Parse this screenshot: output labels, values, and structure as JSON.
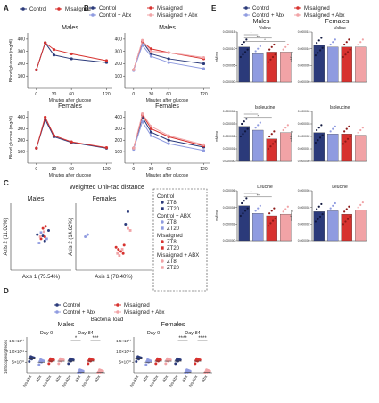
{
  "colors": {
    "control": "#2b3a7a",
    "control_abx": "#8f9be0",
    "misaligned": "#d7322f",
    "misaligned_abx": "#f1a3a6",
    "dashed_box": "#333333"
  },
  "panel_letters": {
    "A": "A",
    "B": "B",
    "C": "C",
    "D": "D",
    "E": "E"
  },
  "legends": {
    "A": [
      "Control",
      "Misaligned"
    ],
    "B": [
      "Control",
      "Misaligned",
      "Control + Abx",
      "Misaligned + Abx"
    ],
    "D": [
      "Control",
      "Misaligned",
      "Control + Abx",
      "Misaligned + Abx"
    ],
    "E": [
      "Control",
      "Misaligned",
      "Control + Abx",
      "Misaligned + Abx"
    ]
  },
  "legend_C": {
    "box_title": "Control",
    "groups": [
      {
        "title": "Control",
        "items": [
          "ZT8",
          "ZT20"
        ]
      },
      {
        "title": "Control + ABX",
        "items": [
          "ZT8",
          "ZT20"
        ]
      },
      {
        "title": "Misaligned",
        "items": [
          "ZT8",
          "ZT20"
        ]
      },
      {
        "title": "Misaligned + ABX",
        "items": [
          "ZT8",
          "ZT20"
        ]
      }
    ]
  },
  "section_titles": {
    "males": "Males",
    "females": "Females",
    "weighted_unifrac": "Weighted UniFrac distance",
    "bacterial_load": "Bacterial load"
  },
  "chart_data": [
    {
      "id": "A-males",
      "type": "line",
      "title": "Males",
      "xlabel": "Minutes after glucose",
      "ylabel": "Blood glucose (mg/dl)",
      "x": [
        0,
        15,
        30,
        60,
        120
      ],
      "xticks": [
        0,
        30,
        60,
        120
      ],
      "yticks": [
        100,
        200,
        300,
        400
      ],
      "ylim": [
        0,
        450
      ],
      "series": [
        {
          "name": "Control",
          "values": [
            150,
            370,
            270,
            240,
            210
          ]
        },
        {
          "name": "Misaligned",
          "values": [
            150,
            370,
            315,
            280,
            225
          ]
        }
      ]
    },
    {
      "id": "A-females",
      "type": "line",
      "title": "Females",
      "xlabel": "Minutes after glucose",
      "ylabel": "Blood glucose (mg/dl)",
      "x": [
        0,
        15,
        30,
        60,
        120
      ],
      "xticks": [
        0,
        30,
        60,
        120
      ],
      "yticks": [
        100,
        200,
        300,
        400
      ],
      "ylim": [
        0,
        450
      ],
      "series": [
        {
          "name": "Control",
          "values": [
            130,
            380,
            230,
            180,
            130
          ]
        },
        {
          "name": "Misaligned",
          "values": [
            130,
            400,
            240,
            185,
            135
          ]
        }
      ]
    },
    {
      "id": "B-males",
      "type": "line",
      "title": "Males",
      "xlabel": "Minutes after glucose",
      "ylabel": "",
      "x": [
        0,
        15,
        30,
        60,
        120
      ],
      "xticks": [
        0,
        30,
        60,
        120
      ],
      "yticks": [
        100,
        200,
        300,
        400
      ],
      "ylim": [
        0,
        450
      ],
      "series": [
        {
          "name": "Control",
          "values": [
            150,
            380,
            280,
            240,
            200
          ]
        },
        {
          "name": "Misaligned",
          "values": [
            150,
            380,
            320,
            290,
            240
          ]
        },
        {
          "name": "Control + Abx",
          "values": [
            145,
            350,
            260,
            210,
            160
          ]
        },
        {
          "name": "Misaligned + Abx",
          "values": [
            150,
            390,
            300,
            290,
            250
          ]
        }
      ]
    },
    {
      "id": "B-females",
      "type": "line",
      "title": "Females",
      "xlabel": "Minutes after glucose",
      "ylabel": "",
      "x": [
        0,
        15,
        30,
        60,
        120
      ],
      "xticks": [
        0,
        30,
        60,
        120
      ],
      "yticks": [
        100,
        200,
        300,
        400
      ],
      "ylim": [
        0,
        450
      ],
      "series": [
        {
          "name": "Control",
          "values": [
            130,
            400,
            270,
            200,
            140
          ]
        },
        {
          "name": "Misaligned",
          "values": [
            130,
            420,
            300,
            230,
            150
          ]
        },
        {
          "name": "Control + Abx",
          "values": [
            120,
            360,
            240,
            170,
            110
          ]
        },
        {
          "name": "Misaligned + Abx",
          "values": [
            130,
            430,
            320,
            240,
            160
          ]
        }
      ]
    },
    {
      "id": "C-males",
      "type": "scatter",
      "title": "Males",
      "xlabel": "Axis 1 (75.54%)",
      "ylabel": "Axis 2 (11.02%)",
      "series": [
        {
          "name": "Control ZT8",
          "values": [
            [
              -0.1,
              0.05
            ],
            [
              0.05,
              0.02
            ],
            [
              0.1,
              -0.1
            ],
            [
              0.2,
              0.15
            ]
          ]
        },
        {
          "name": "Control ZT20",
          "values": [
            [
              0.0,
              0.1
            ],
            [
              0.15,
              -0.05
            ],
            [
              -0.05,
              -0.15
            ]
          ]
        },
        {
          "name": "Misaligned ZT8",
          "values": [
            [
              0.05,
              0.2
            ],
            [
              0.0,
              -0.05
            ],
            [
              0.1,
              0.0
            ],
            [
              0.12,
              0.25
            ]
          ]
        },
        {
          "name": "Misaligned ZT20",
          "values": [
            [
              0.08,
              0.12
            ],
            [
              -0.02,
              0.0
            ]
          ]
        }
      ]
    },
    {
      "id": "C-females",
      "type": "scatter",
      "title": "Females",
      "xlabel": "Axis 1 (78.40%)",
      "ylabel": "Axis 2 (14.62%)",
      "series": [
        {
          "name": "Control ZT8",
          "values": [
            [
              0.3,
              0.6
            ],
            [
              0.25,
              0.3
            ]
          ]
        },
        {
          "name": "Control + ABX ZT8",
          "values": [
            [
              -0.6,
              0.0
            ],
            [
              -0.55,
              0.05
            ]
          ]
        },
        {
          "name": "Misaligned ZT8",
          "values": [
            [
              0.1,
              -0.3
            ],
            [
              0.2,
              -0.4
            ],
            [
              0.15,
              -0.35
            ],
            [
              0.05,
              -0.25
            ],
            [
              0.22,
              -0.2
            ]
          ]
        },
        {
          "name": "Misaligned ZT20",
          "values": [
            [
              0.12,
              -0.45
            ],
            [
              0.18,
              -0.3
            ],
            [
              0.08,
              -0.4
            ]
          ]
        },
        {
          "name": "Misaligned + ABX ZT20",
          "values": [
            [
              0.3,
              0.2
            ],
            [
              0.35,
              0.15
            ]
          ]
        }
      ]
    },
    {
      "id": "D-males",
      "type": "scatter",
      "title": "Males",
      "ylabel": "16S copies/g feces",
      "yticks": [
        "5×10¹⁰",
        "1.0×10¹¹",
        "1.5×10¹¹"
      ],
      "subtitles": [
        "Day 0",
        "Day 84"
      ],
      "categories": [
        "No Abx",
        "Abx",
        "No Abx",
        "Abx",
        "No Abx",
        "Abx",
        "No Abx",
        "Abx"
      ],
      "significance": [
        "*",
        "***"
      ]
    },
    {
      "id": "D-females",
      "type": "scatter",
      "title": "Females",
      "yticks": [
        "5×10¹⁰",
        "1.0×10¹¹",
        "1.5×10¹¹"
      ],
      "subtitles": [
        "Day 0",
        "Day 84"
      ],
      "categories": [
        "No Abx",
        "Abx",
        "No Abx",
        "Abx",
        "No Abx",
        "Abx",
        "No Abx",
        "Abx"
      ],
      "significance": [
        "****",
        "****"
      ]
    },
    {
      "id": "E-valine-m",
      "type": "bar",
      "title": "Valine",
      "ylabel": "mM/mg",
      "yticks": [
        "0.000000",
        "0.000005",
        "0.000010",
        "0.000015"
      ],
      "values": [
        1.05e-05,
        8.5e-06,
        9e-06,
        9e-06
      ],
      "ylim": [
        0,
        1.5e-05
      ],
      "sig": [
        "*",
        "**",
        "*"
      ]
    },
    {
      "id": "E-valine-f",
      "type": "bar",
      "title": "Valine",
      "ylabel": "mM/mg",
      "yticks": [
        "0.000000",
        "0.000005",
        "0.000010",
        "0.000015"
      ],
      "values": [
        1.1e-05,
        1.05e-05,
        1.05e-05,
        1.05e-05
      ],
      "ylim": [
        0,
        1.5e-05
      ]
    },
    {
      "id": "E-iso-m",
      "type": "bar",
      "title": "Isoleucine",
      "ylabel": "mM/mg",
      "yticks": [
        "0.000000",
        "0.000001",
        "0.000002",
        "0.000003",
        "0.000004"
      ],
      "values": [
        2.8e-06,
        2.5e-06,
        1.8e-06,
        2.3e-06
      ],
      "ylim": [
        0,
        4e-06
      ],
      "sig": [
        "*",
        "*"
      ]
    },
    {
      "id": "E-iso-f",
      "type": "bar",
      "title": "Isoleucine",
      "ylabel": "mM/mg",
      "yticks": [
        "0.000000",
        "0.000001",
        "0.000002",
        "0.000003",
        "0.000004"
      ],
      "values": [
        2.3e-06,
        2.2e-06,
        2.2e-06,
        2.1e-06
      ],
      "ylim": [
        0,
        4e-06
      ]
    },
    {
      "id": "E-leu-m",
      "type": "bar",
      "title": "Leucine",
      "ylabel": "mM/mg",
      "yticks": [
        "0.000000",
        "0.000002",
        "0.000004",
        "0.000006"
      ],
      "values": [
        4.2e-06,
        3.3e-06,
        3e-06,
        3.2e-06
      ],
      "ylim": [
        0,
        6e-06
      ],
      "sig": [
        "*",
        "**"
      ]
    },
    {
      "id": "E-leu-f",
      "type": "bar",
      "title": "Leucine",
      "ylabel": "mM/mg",
      "yticks": [
        "0.000000",
        "0.000002",
        "0.000004",
        "0.000006"
      ],
      "values": [
        3.5e-06,
        3.6e-06,
        3.2e-06,
        3.7e-06
      ],
      "ylim": [
        0,
        6e-06
      ]
    }
  ]
}
